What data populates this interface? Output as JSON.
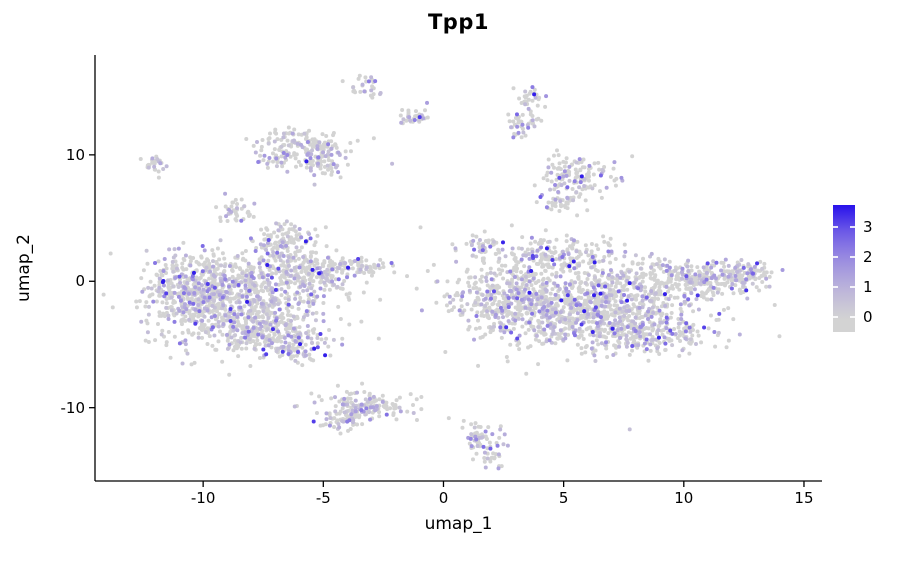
{
  "chart_data": {
    "type": "scatter",
    "title": "Tpp1",
    "xlabel": "umap_1",
    "ylabel": "umap_2",
    "xlim": [
      -14.5,
      15.75
    ],
    "ylim": [
      -15.8,
      17.9
    ],
    "grid": false,
    "x_ticks": [
      {
        "v": -10,
        "label": "-10"
      },
      {
        "v": -5,
        "label": "-5"
      },
      {
        "v": 0,
        "label": "0"
      },
      {
        "v": 5,
        "label": "5"
      },
      {
        "v": 10,
        "label": "10"
      },
      {
        "v": 15,
        "label": "15"
      }
    ],
    "y_ticks": [
      {
        "v": -10,
        "label": "-10"
      },
      {
        "v": 0,
        "label": "0"
      },
      {
        "v": 10,
        "label": "10"
      }
    ],
    "point_radius": 2,
    "seed": 42,
    "expressed_fraction": 0.3,
    "expression_max": 3.6,
    "base_point_color": "#d3d3d3",
    "axis_color": "#000000",
    "legend": {
      "values": [
        3,
        2,
        1,
        0
      ],
      "vmin": -0.5,
      "vmax": 3.73,
      "gradient_stops": [
        "#d3d3d3",
        "#bcb4da",
        "#9d8fe0",
        "#715ee7",
        "#2812eb"
      ]
    },
    "cluster_fields": [
      "center_x",
      "center_y",
      "sd_x",
      "sd_y",
      "n_points"
    ],
    "clusters": [
      [
        -8.8,
        -1.2,
        1.7,
        1.7,
        850
      ],
      [
        -10.6,
        -0.5,
        0.9,
        1.2,
        220
      ],
      [
        -6.6,
        2.8,
        0.7,
        1.0,
        130
      ],
      [
        -5.4,
        0.6,
        1.0,
        0.8,
        180
      ],
      [
        -3.8,
        1.1,
        0.7,
        0.35,
        70
      ],
      [
        -7.6,
        -4.0,
        1.3,
        0.9,
        230
      ],
      [
        -6.2,
        -5.2,
        0.7,
        0.5,
        90
      ],
      [
        6.3,
        -2.2,
        2.0,
        1.5,
        950
      ],
      [
        2.6,
        -1.2,
        1.2,
        1.4,
        320
      ],
      [
        4.9,
        2.0,
        1.4,
        0.8,
        200
      ],
      [
        10.3,
        0.2,
        1.5,
        0.8,
        280
      ],
      [
        12.4,
        0.5,
        0.7,
        0.45,
        90
      ],
      [
        8.6,
        -4.2,
        1.4,
        0.7,
        170
      ],
      [
        1.7,
        2.9,
        0.4,
        0.5,
        35
      ],
      [
        -5.8,
        11.0,
        1.0,
        0.55,
        110
      ],
      [
        -5.1,
        9.4,
        0.6,
        0.6,
        70
      ],
      [
        -6.9,
        9.8,
        0.45,
        0.5,
        45
      ],
      [
        -1.3,
        13.0,
        0.35,
        0.45,
        35
      ],
      [
        -3.2,
        15.3,
        0.3,
        0.45,
        28
      ],
      [
        3.5,
        14.4,
        0.28,
        0.45,
        30
      ],
      [
        3.3,
        12.3,
        0.32,
        0.5,
        38
      ],
      [
        5.6,
        8.3,
        0.75,
        0.85,
        120
      ],
      [
        4.9,
        6.3,
        0.5,
        0.4,
        40
      ],
      [
        -12.0,
        9.3,
        0.25,
        0.5,
        26
      ],
      [
        -8.6,
        5.6,
        0.35,
        0.55,
        42
      ],
      [
        -3.1,
        -9.9,
        1.0,
        0.6,
        150
      ],
      [
        -4.3,
        -11.0,
        0.5,
        0.4,
        45
      ],
      [
        1.6,
        -12.4,
        0.45,
        0.6,
        55
      ],
      [
        1.9,
        -13.9,
        0.3,
        0.35,
        18
      ],
      [
        0.5,
        0.5,
        6.5,
        5.5,
        28
      ]
    ]
  }
}
